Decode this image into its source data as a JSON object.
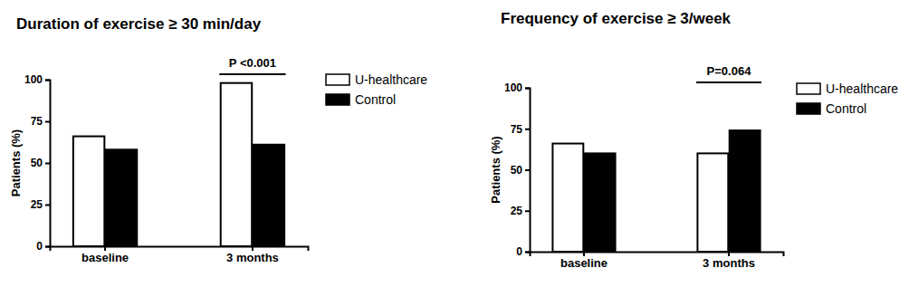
{
  "chart_data": [
    {
      "type": "bar",
      "title": "Duration of exercise ≥ 30 min/day",
      "categories": [
        "baseline",
        "3 months"
      ],
      "series": [
        {
          "name": "U-healthcare",
          "color": "#ffffff",
          "values": [
            66,
            98
          ]
        },
        {
          "name": "Control",
          "color": "#000000",
          "values": [
            58,
            61
          ]
        }
      ],
      "y_label": "Patients (%)",
      "ylim": [
        0,
        100
      ],
      "yticks": [
        0,
        25,
        50,
        75,
        100
      ],
      "grid": false,
      "legend": "right",
      "annotations": [
        {
          "text": "P <0.001",
          "x": "3 months"
        }
      ]
    },
    {
      "type": "bar",
      "title": "Frequency of exercise ≥ 3/week",
      "categories": [
        "baseline",
        "3 months"
      ],
      "series": [
        {
          "name": "U-healthcare",
          "color": "#ffffff",
          "values": [
            66,
            60
          ]
        },
        {
          "name": "Control",
          "color": "#000000",
          "values": [
            60,
            74
          ]
        }
      ],
      "y_label": "Patients (%)",
      "ylim": [
        0,
        100
      ],
      "yticks": [
        0,
        25,
        50,
        75,
        100
      ],
      "grid": false,
      "legend": "right",
      "annotations": [
        {
          "text": "P=0.064",
          "x": "3 months"
        }
      ]
    }
  ]
}
